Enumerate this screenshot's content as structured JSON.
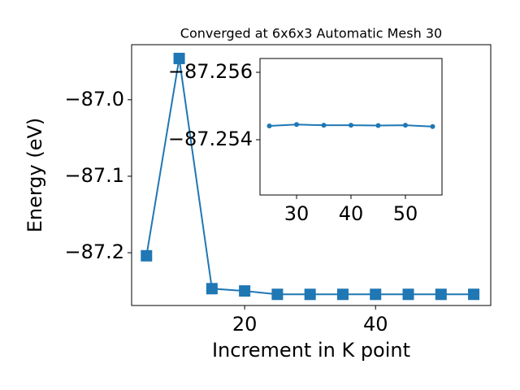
{
  "chart_data": [
    {
      "type": "line",
      "title": "Converged at 6x6x3 Automatic Mesh 30",
      "x_label": "Increment in K point",
      "y_label": "Energy (eV)",
      "marker": "square",
      "series": [
        {
          "color": "#1f77b4",
          "x": [
            5,
            10,
            15,
            20,
            25,
            30,
            35,
            40,
            45,
            50,
            55
          ],
          "values": [
            -87.204,
            -86.946,
            -87.247,
            -87.25,
            -87.25441,
            -87.25445,
            -87.25443,
            -87.25443,
            -87.25442,
            -87.25443,
            -87.25439
          ]
        }
      ],
      "xlim": [
        2.73,
        57.6
      ],
      "xticks": [
        20,
        40
      ],
      "ylim": [
        -87.269,
        -86.928
      ],
      "yticks": [
        {
          "value": -87.2,
          "label": "−87.2"
        },
        {
          "value": -87.1,
          "label": "−87.1"
        },
        {
          "value": -87.0,
          "label": "−87.0"
        }
      ]
    },
    {
      "type": "line",
      "marker": "circle",
      "series": [
        {
          "color": "#1f77b4",
          "x": [
            25,
            30,
            35,
            40,
            45,
            50,
            55
          ],
          "values": [
            -87.25441,
            -87.25445,
            -87.25443,
            -87.25443,
            -87.25442,
            -87.25443,
            -87.25439
          ]
        }
      ],
      "xlim": [
        23.28,
        56.72
      ],
      "xticks": [
        30,
        40,
        50
      ],
      "ylim": [
        -87.25236,
        -87.25641
      ],
      "yticks": [
        {
          "value": -87.254,
          "label": "−87.254"
        },
        {
          "value": -87.256,
          "label": "−87.256"
        }
      ]
    }
  ]
}
